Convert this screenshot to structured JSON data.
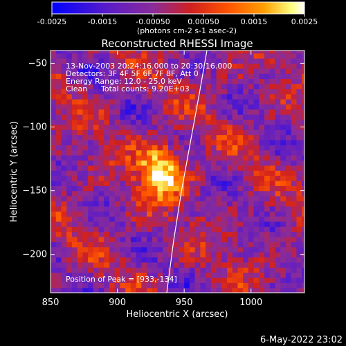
{
  "chart_data": {
    "type": "heatmap",
    "title": "Reconstructed RHESSI Image",
    "xlabel": "Heliocentric X (arcsec)",
    "ylabel": "Heliocentric Y (arcsec)",
    "xlim": [
      850,
      1040
    ],
    "ylim": [
      -230,
      -40
    ],
    "x_ticks": [
      850,
      900,
      950,
      1000
    ],
    "y_ticks": [
      -50,
      -100,
      -150,
      -200
    ],
    "colorbar": {
      "min": -0.0025,
      "max": 0.0025,
      "tick_values": [
        -0.0025,
        -0.0015,
        -0.0005,
        0.0005,
        0.0015,
        0.0025
      ],
      "tick_labels": [
        "-0.0025",
        "-0.0015",
        "-0.00050",
        "0.00050",
        "0.0015",
        "0.0025"
      ],
      "unit_label": "(photons cm-2 s-1 asec-2)",
      "colors": [
        "#0000ff",
        "#5a1cc8",
        "#8a2c9a",
        "#d02020",
        "#ff5500",
        "#ffa000",
        "#ffff80",
        "#ffffff"
      ]
    },
    "info": {
      "time_range": "13-Nov-2003 20:24:16.000 to 20:30:16.000",
      "detectors": "Detectors: 3F 4F 5F 6F 7F 8F, Att 0",
      "energy": "Energy Range: 12.0 - 25.0 keV",
      "algorithm": "Clean",
      "counts": "Total counts: 9.20E+03"
    },
    "peak": {
      "label": "Position of Peak = [933,-134]",
      "x": 933,
      "y": -134
    },
    "limb_curve": {
      "color": "#ffffff",
      "points": [
        [
          967,
          -40
        ],
        [
          962,
          -70
        ],
        [
          955,
          -110
        ],
        [
          948,
          -150
        ],
        [
          942,
          -190
        ],
        [
          937,
          -230
        ]
      ]
    }
  },
  "footer": {
    "date": "6-May-2022 23:02"
  }
}
